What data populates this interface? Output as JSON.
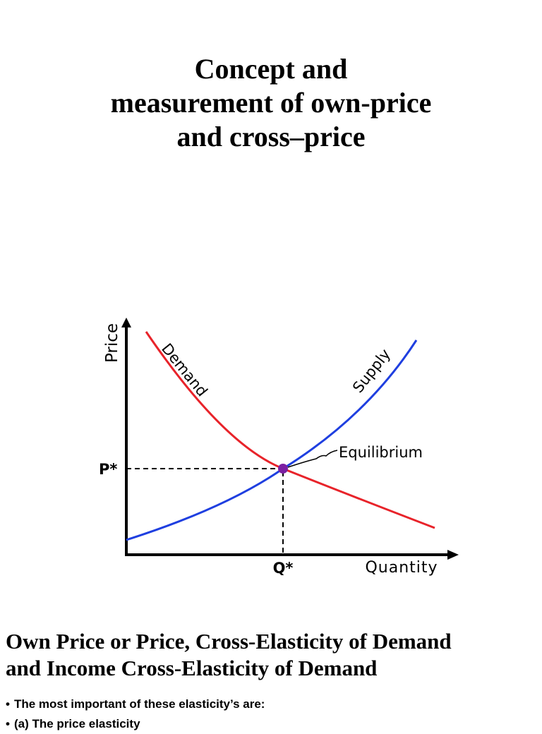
{
  "slide": {
    "title_lines": [
      "Concept and",
      "measurement of own-price",
      "and cross–price"
    ],
    "heading_lines": [
      "Own Price or Price, Cross-Elasticity of Demand",
      "and Income Cross-Elasticity of Demand"
    ],
    "bullets": [
      "The most important of these elasticity’s are:",
      "(a) The price elasticity"
    ]
  },
  "chart_data": {
    "type": "line",
    "xlabel": "Quantity",
    "ylabel": "Price",
    "series": [
      {
        "name": "Demand",
        "color": "#e8232a",
        "direction": "downward-sloping"
      },
      {
        "name": "Supply",
        "color": "#1f3fe0",
        "direction": "upward-sloping"
      }
    ],
    "equilibrium": {
      "label": "Equilibrium",
      "price_label": "P*",
      "quantity_label": "Q*",
      "marker_color": "#7b1fa2"
    },
    "grid": false,
    "legend": "none"
  }
}
